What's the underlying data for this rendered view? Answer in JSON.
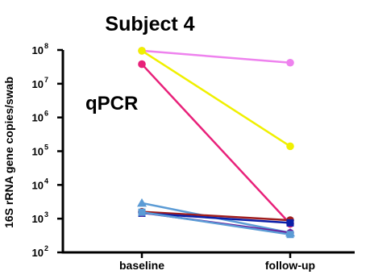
{
  "chart_data": {
    "type": "line",
    "title": "Subject 4",
    "annotation": "qPCR",
    "xlabel": "",
    "ylabel": "16S rRNA gene copies/swab",
    "yscale": "log",
    "ylim": [
      100,
      100000000
    ],
    "y_ticks": [
      {
        "base": "10",
        "exp": "2"
      },
      {
        "base": "10",
        "exp": "3"
      },
      {
        "base": "10",
        "exp": "4"
      },
      {
        "base": "10",
        "exp": "5"
      },
      {
        "base": "10",
        "exp": "6"
      },
      {
        "base": "10",
        "exp": "7"
      },
      {
        "base": "10",
        "exp": "8"
      }
    ],
    "categories": [
      "baseline",
      "follow-up"
    ],
    "grid": false,
    "legend": "none",
    "series": [
      {
        "color": "#ee82ee",
        "marker": "circle",
        "values": [
          95000000,
          42000000
        ]
      },
      {
        "color": "#f0f000",
        "marker": "circle",
        "values": [
          95000000,
          140000
        ]
      },
      {
        "color": "#e8217a",
        "marker": "circle",
        "values": [
          38000000,
          700
        ]
      },
      {
        "color": "#5b9bd5",
        "marker": "triangle",
        "values": [
          2900,
          380
        ]
      },
      {
        "color": "#a01e1e",
        "marker": "circle",
        "values": [
          1600,
          900
        ]
      },
      {
        "color": "#0a1fa8",
        "marker": "square",
        "values": [
          1450,
          750
        ]
      },
      {
        "color": "#6a1b9a",
        "marker": "circle",
        "values": [
          1500,
          380
        ]
      },
      {
        "color": "#5b9bd5",
        "marker": "square",
        "values": [
          1550,
          340
        ]
      }
    ]
  }
}
